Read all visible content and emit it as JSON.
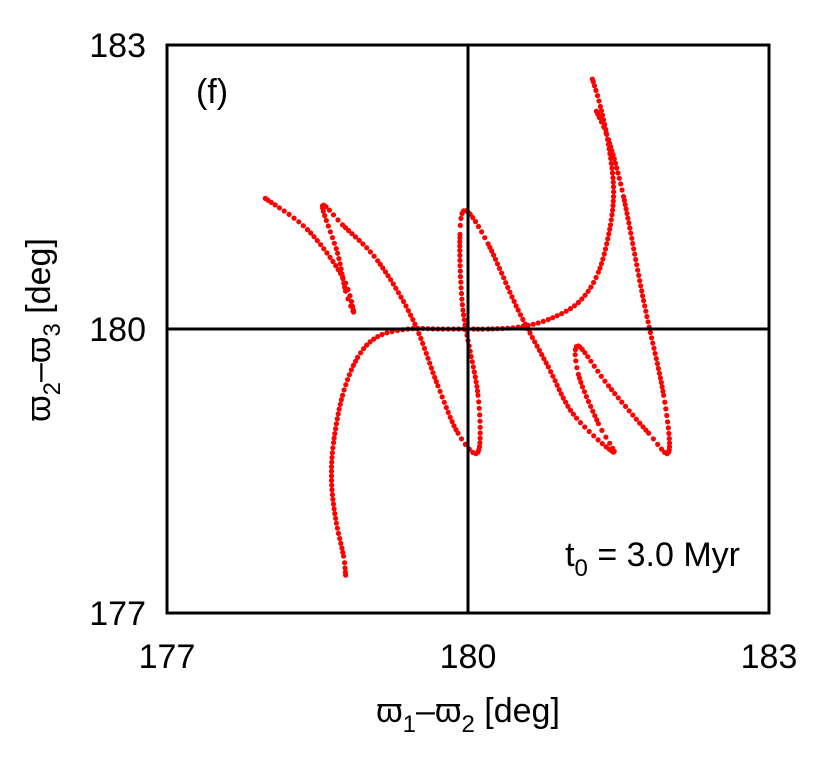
{
  "chart_data": {
    "type": "scatter",
    "panel_label": "(f)",
    "annotation": {
      "main": "t",
      "sub": "0",
      "rest": " = 3.0 Myr"
    },
    "xlabel": {
      "pre": "ϖ",
      "sub1": "1",
      "mid": "–ϖ",
      "sub2": "2",
      "unit": " [deg]"
    },
    "ylabel": {
      "pre": "ϖ",
      "sub1": "2",
      "mid": "–ϖ",
      "sub2": "3",
      "unit": " [deg]"
    },
    "xlim": [
      177,
      183
    ],
    "ylim": [
      177,
      183
    ],
    "xticks": [
      "177",
      "180",
      "183"
    ],
    "yticks": [
      "177",
      "180",
      "183"
    ],
    "reference_lines": {
      "x": 180,
      "y": 180
    },
    "grid": false,
    "marker_color": "#ff0000",
    "series": [
      {
        "values": [
          [
            181.24,
            182.64
          ],
          [
            181.32,
            182.35
          ],
          [
            181.4,
            181.95
          ],
          [
            181.45,
            181.5
          ],
          [
            181.42,
            181.1
          ],
          [
            181.3,
            180.6
          ],
          [
            181.1,
            180.28
          ],
          [
            180.8,
            180.1
          ],
          [
            180.5,
            180.02
          ],
          [
            180.2,
            180.0
          ],
          [
            180.0,
            180.0
          ],
          [
            179.7,
            180.0
          ],
          [
            179.4,
            180.0
          ],
          [
            179.1,
            179.92
          ],
          [
            178.9,
            179.7
          ],
          [
            178.75,
            179.3
          ],
          [
            178.66,
            178.8
          ],
          [
            178.64,
            178.4
          ],
          [
            178.68,
            178.0
          ],
          [
            178.76,
            177.6
          ],
          [
            178.78,
            177.4
          ]
        ]
      },
      {
        "values": [
          [
            177.98,
            181.38
          ],
          [
            178.4,
            181.05
          ],
          [
            178.75,
            180.55
          ],
          [
            178.86,
            180.18
          ],
          [
            178.78,
            180.4
          ],
          [
            178.7,
            180.8
          ],
          [
            178.55,
            181.3
          ],
          [
            178.75,
            181.1
          ],
          [
            179.1,
            180.72
          ],
          [
            179.45,
            180.1
          ],
          [
            179.7,
            179.4
          ],
          [
            179.9,
            178.9
          ],
          [
            180.1,
            178.7
          ],
          [
            180.1,
            179.3
          ],
          [
            179.95,
            180.2
          ],
          [
            179.92,
            181.0
          ],
          [
            179.98,
            181.25
          ],
          [
            180.2,
            180.9
          ],
          [
            180.5,
            180.2
          ],
          [
            180.8,
            179.6
          ],
          [
            181.05,
            179.1
          ],
          [
            181.45,
            178.7
          ],
          [
            181.3,
            179.0
          ],
          [
            181.1,
            179.52
          ],
          [
            181.1,
            179.82
          ],
          [
            181.4,
            179.4
          ],
          [
            181.8,
            178.9
          ],
          [
            182.0,
            178.7
          ],
          [
            181.95,
            179.3
          ],
          [
            181.75,
            180.3
          ],
          [
            181.55,
            181.4
          ],
          [
            181.4,
            182.0
          ],
          [
            181.28,
            182.3
          ]
        ]
      }
    ]
  }
}
